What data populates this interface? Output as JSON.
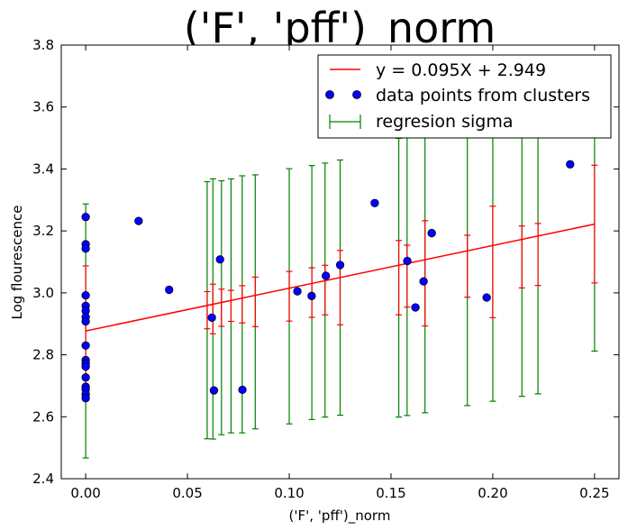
{
  "chart_data": {
    "type": "scatter",
    "title": "('F', 'pff')_norm",
    "xlabel": "('F', 'pff')_norm",
    "ylabel": "Log flourescence",
    "xlim": [
      -0.012,
      0.262
    ],
    "ylim": [
      2.4,
      3.8
    ],
    "xticks": [
      0.0,
      0.05,
      0.1,
      0.15,
      0.2,
      0.25
    ],
    "xtick_labels": [
      "0.00",
      "0.05",
      "0.10",
      "0.15",
      "0.20",
      "0.25"
    ],
    "yticks": [
      2.4,
      2.6,
      2.8,
      3.0,
      3.2,
      3.4,
      3.6,
      3.8
    ],
    "ytick_labels": [
      "2.4",
      "2.6",
      "2.8",
      "3.0",
      "3.2",
      "3.4",
      "3.6",
      "3.8"
    ],
    "grid": false,
    "legend_position": "top-right",
    "regression": {
      "label": "y = 0.095X + 2.949",
      "color": "#ff0000",
      "x_range": [
        0.0,
        0.25
      ],
      "y_start": 2.877,
      "y_end": 3.222
    },
    "points": {
      "label": "data points from clusters",
      "color": "#0000ff",
      "x": [
        0.0,
        0.0,
        0.0,
        0.0,
        0.0,
        0.0,
        0.0,
        0.0,
        0.0,
        0.0,
        0.0,
        0.0,
        0.0,
        0.0,
        0.0,
        0.0,
        0.0,
        0.026,
        0.041,
        0.062,
        0.063,
        0.066,
        0.077,
        0.104,
        0.111,
        0.118,
        0.125,
        0.142,
        0.158,
        0.162,
        0.166,
        0.17,
        0.197,
        0.238
      ],
      "y": [
        3.245,
        3.157,
        3.143,
        2.992,
        2.958,
        2.942,
        2.922,
        2.908,
        2.83,
        2.783,
        2.772,
        2.762,
        2.727,
        2.697,
        2.688,
        2.672,
        2.66,
        3.232,
        3.01,
        2.92,
        2.685,
        3.108,
        2.687,
        3.005,
        2.99,
        3.055,
        3.09,
        3.29,
        3.103,
        2.953,
        3.037,
        3.193,
        2.985,
        3.415
      ]
    },
    "error_bars": {
      "label": "regresion sigma",
      "color": "#008000",
      "inner_color": "#ff0000",
      "x": [
        0.0,
        0.0597,
        0.0625,
        0.0667,
        0.0714,
        0.0769,
        0.0833,
        0.1,
        0.1111,
        0.1176,
        0.125,
        0.1538,
        0.1579,
        0.1667,
        0.1875,
        0.2,
        0.2143,
        0.2222,
        0.25
      ],
      "center": [
        2.877,
        2.944,
        2.948,
        2.952,
        2.958,
        2.963,
        2.971,
        2.989,
        3.001,
        3.009,
        3.017,
        3.049,
        3.054,
        3.063,
        3.086,
        3.1,
        3.116,
        3.124,
        3.222
      ],
      "outer": [
        0.41,
        0.415,
        0.42,
        0.41,
        0.41,
        0.415,
        0.41,
        0.412,
        0.41,
        0.41,
        0.412,
        0.45,
        0.45,
        0.45,
        0.45,
        0.45,
        0.45,
        0.45,
        0.41
      ],
      "inner": [
        0.21,
        0.06,
        0.08,
        0.06,
        0.05,
        0.06,
        0.08,
        0.08,
        0.08,
        0.08,
        0.12,
        0.12,
        0.1,
        0.17,
        0.1,
        0.18,
        0.1,
        0.1,
        0.19
      ]
    }
  }
}
